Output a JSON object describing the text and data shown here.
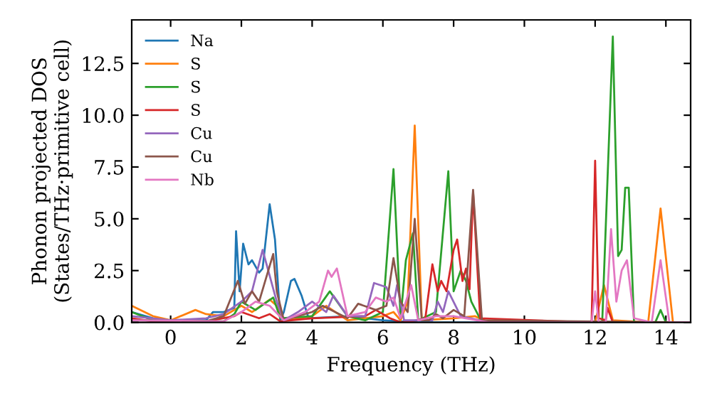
{
  "chart_data": {
    "type": "line",
    "xlabel": "Frequency (THz)",
    "ylabel": "Phonon projected DOS\n(States/THz·primitive cell)",
    "xlim": [
      -1.1,
      14.7
    ],
    "ylim": [
      0,
      14.6
    ],
    "xticks": [
      0,
      2,
      4,
      6,
      8,
      10,
      12,
      14
    ],
    "yticks": [
      {
        "value": 0,
        "label": "0.0"
      },
      2.5,
      {
        "value": 5,
        "label": "5.0"
      },
      7.5,
      {
        "value": 10,
        "label": "10.0"
      },
      12.5
    ],
    "legend": "top left",
    "grid": false,
    "marker": "none",
    "line_style": "solid",
    "series": [
      {
        "name": "Na",
        "color": "#1f77b4",
        "x": [
          -1.1,
          -0.5,
          0,
          1,
          1.2,
          1.5,
          1.8,
          1.85,
          1.95,
          2.05,
          2.2,
          2.3,
          2.5,
          2.6,
          2.8,
          2.95,
          3.1,
          3.2,
          3.4,
          3.5,
          3.7,
          3.9,
          5,
          6,
          7,
          10,
          14.7
        ],
        "values": [
          0.5,
          0.2,
          0.1,
          0.1,
          0.5,
          0.5,
          0.7,
          4.4,
          1.5,
          3.8,
          2.8,
          3.0,
          2.4,
          2.6,
          5.7,
          4.0,
          0.1,
          0.5,
          2.0,
          2.1,
          1.3,
          0.2,
          0.3,
          0.1,
          0,
          0,
          0
        ]
      },
      {
        "name": "S",
        "color": "#ff7f0e",
        "x": [
          -1.1,
          -0.5,
          0,
          0.7,
          1.0,
          1.5,
          2,
          2.3,
          2.8,
          3.0,
          3.2,
          4,
          4.4,
          5,
          6,
          6.3,
          6.5,
          6.7,
          6.9,
          7.1,
          8,
          8.6,
          9,
          12,
          12.25,
          12.5,
          13.5,
          13.85,
          14.2,
          14.7
        ],
        "values": [
          0.8,
          0.3,
          0.1,
          0.6,
          0.4,
          0.3,
          0.8,
          0.5,
          1.1,
          0.8,
          0.1,
          0.3,
          0.8,
          0.1,
          0.3,
          0.5,
          0.1,
          1.0,
          9.5,
          0.1,
          0.2,
          0.3,
          0,
          0,
          1.8,
          0.1,
          0,
          5.5,
          0,
          0
        ]
      },
      {
        "name": "S",
        "color": "#2ca02c",
        "x": [
          -1.1,
          -0.5,
          1.5,
          1.8,
          2.0,
          2.4,
          2.9,
          3.1,
          4,
          4.5,
          5,
          5.5,
          6.0,
          6.3,
          6.5,
          6.65,
          6.85,
          7.0,
          7.5,
          7.85,
          8.0,
          8.2,
          8.35,
          8.5,
          8.8,
          12.2,
          12.5,
          12.65,
          12.75,
          12.85,
          12.95,
          13.1,
          13.7,
          13.85,
          14.0,
          14.7
        ],
        "values": [
          0.5,
          0.1,
          0.05,
          0.4,
          1.0,
          0.6,
          1.2,
          0.2,
          0.3,
          1.5,
          0.3,
          0.1,
          0.5,
          7.4,
          0.2,
          3.0,
          4.3,
          0.1,
          0.5,
          7.3,
          1.5,
          2.5,
          2.0,
          1.0,
          0,
          0,
          13.8,
          3.2,
          3.5,
          6.5,
          6.5,
          0,
          0,
          0.6,
          0,
          0
        ]
      },
      {
        "name": "S",
        "color": "#d62728",
        "x": [
          -1.1,
          -0.5,
          1,
          1.8,
          2.0,
          2.5,
          2.8,
          3.1,
          4,
          5.5,
          5.8,
          6.2,
          6.5,
          7,
          7.2,
          7.4,
          7.55,
          7.65,
          7.8,
          8.0,
          8.1,
          8.25,
          8.35,
          8.45,
          8.55,
          8.75,
          11.9,
          12.0,
          12.1,
          12.3,
          12.35,
          12.5,
          14.7
        ],
        "values": [
          0.2,
          0.05,
          0.05,
          0.3,
          0.5,
          0.2,
          0.4,
          0.05,
          0.2,
          0.3,
          0.6,
          0.2,
          0,
          0.1,
          0.2,
          2.8,
          1.5,
          2.0,
          1.5,
          3.5,
          4.0,
          2.0,
          2.6,
          1.6,
          6.3,
          0.2,
          0,
          7.8,
          0.2,
          0.1,
          0.7,
          0,
          0
        ]
      },
      {
        "name": "Cu",
        "color": "#9467bd",
        "x": [
          -1.1,
          0,
          1,
          1.5,
          2.0,
          2.3,
          2.6,
          3.0,
          3.2,
          3.6,
          4.0,
          4.4,
          4.6,
          5.0,
          5.5,
          5.75,
          6.1,
          6.3,
          6.4,
          6.6,
          7.4,
          7.55,
          7.7,
          7.85,
          8.2,
          9,
          14.7
        ],
        "values": [
          0.3,
          0.1,
          0.2,
          0.4,
          1.0,
          1.5,
          3.5,
          1.0,
          0.1,
          0.5,
          1.0,
          0.5,
          1.3,
          0.3,
          0.3,
          1.9,
          1.7,
          0.8,
          1.8,
          0.1,
          0.1,
          1.0,
          0.5,
          1.5,
          0.3,
          0,
          0
        ]
      },
      {
        "name": "Cu",
        "color": "#8c564b",
        "x": [
          -1.1,
          1,
          1.5,
          1.9,
          2.1,
          2.3,
          2.5,
          2.9,
          3.0,
          3.2,
          4.0,
          4.3,
          5.0,
          5.3,
          5.8,
          6.1,
          6.3,
          6.5,
          6.7,
          6.9,
          7.1,
          7.3,
          7.5,
          7.7,
          8.0,
          8.3,
          8.55,
          8.8,
          14.7
        ],
        "values": [
          0.1,
          0.05,
          0.3,
          2.0,
          0.9,
          1.5,
          1.0,
          3.3,
          1.5,
          0.1,
          0.5,
          0.8,
          0.2,
          0.9,
          0.6,
          0.8,
          3.1,
          1.0,
          0.5,
          5.0,
          0.1,
          0.1,
          0.4,
          0.2,
          0.6,
          0.3,
          6.4,
          0.1,
          0
        ]
      },
      {
        "name": "Nb",
        "color": "#e377c2",
        "x": [
          -1.1,
          1.5,
          2.0,
          2.4,
          2.8,
          3.2,
          3.8,
          4.2,
          4.45,
          4.55,
          4.7,
          5.0,
          5.5,
          5.8,
          6.1,
          6.3,
          6.5,
          6.8,
          7.0,
          7.5,
          8,
          9,
          11.9,
          12.0,
          12.1,
          12.3,
          12.45,
          12.6,
          12.75,
          12.9,
          13.1,
          13.6,
          13.85,
          14.1,
          14.7
        ],
        "values": [
          0.1,
          0.05,
          0.5,
          1.0,
          0.8,
          0.1,
          0.5,
          1.0,
          2.5,
          2.2,
          2.6,
          0.3,
          0.5,
          1.2,
          1.0,
          1.2,
          0.2,
          1.8,
          0.1,
          0.3,
          0.3,
          0,
          0,
          1.5,
          0,
          0,
          4.5,
          1.0,
          2.5,
          3.0,
          0.2,
          0,
          3.0,
          0,
          0
        ]
      }
    ]
  }
}
